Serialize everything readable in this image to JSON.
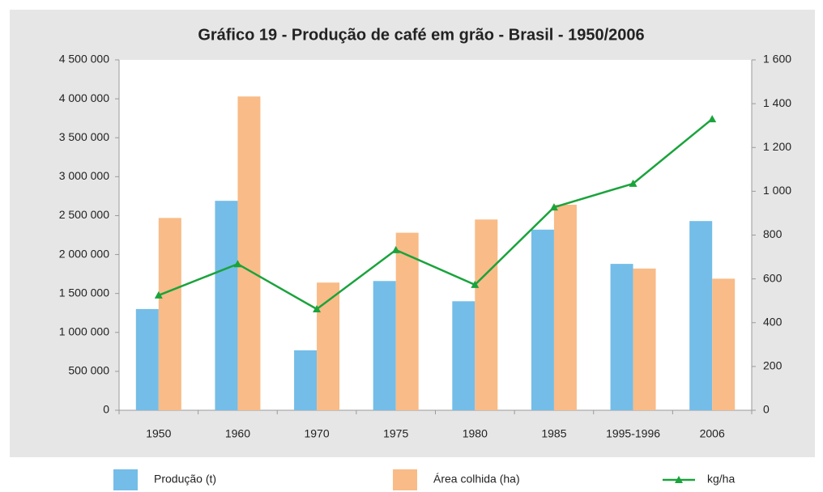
{
  "chart_data": {
    "type": "bar-line",
    "title": "Gráfico 19 - Produção de café em grão - Brasil - 1950/2006",
    "categories": [
      "1950",
      "1960",
      "1970",
      "1975",
      "1980",
      "1985",
      "1995-1996",
      "2006"
    ],
    "series": [
      {
        "name": "Produção (t)",
        "color": "#74bde8",
        "kind": "bar",
        "values": [
          1300000,
          2690000,
          770000,
          1660000,
          1400000,
          2320000,
          1880000,
          2430000
        ]
      },
      {
        "name": "Área colhida (ha)",
        "color": "#f9bb87",
        "kind": "bar",
        "values": [
          2470000,
          4030000,
          1640000,
          2280000,
          2450000,
          2640000,
          1820000,
          1690000
        ]
      },
      {
        "name": "kg/ha",
        "color": "#1aa33c",
        "kind": "line",
        "axis": "y2",
        "values": [
          525,
          668,
          462,
          732,
          573,
          927,
          1035,
          1330
        ]
      }
    ],
    "ylim": [
      0,
      4500000
    ],
    "yticks": [
      0,
      {
        "value": 500000,
        "label": "500 000"
      },
      {
        "value": 1000000,
        "label": "1 000 000"
      },
      {
        "value": 1500000,
        "label": "1 500 000"
      },
      {
        "value": 2000000,
        "label": "2 000 000"
      },
      {
        "value": 2500000,
        "label": "2 500 000"
      },
      {
        "value": 3000000,
        "label": "3 000 000"
      },
      {
        "value": 3500000,
        "label": "3 500 000"
      },
      {
        "value": 4000000,
        "label": "4 000 000"
      },
      {
        "value": 4500000,
        "label": "4 500 000"
      }
    ],
    "y2lim": [
      0,
      1600
    ],
    "y2ticks": [
      0,
      200,
      400,
      600,
      800,
      {
        "value": 1000,
        "label": "1 000"
      },
      {
        "value": 1200,
        "label": "1 200"
      },
      {
        "value": 1400,
        "label": "1 400"
      },
      {
        "value": 1600,
        "label": "1 600"
      }
    ],
    "grid": false
  }
}
